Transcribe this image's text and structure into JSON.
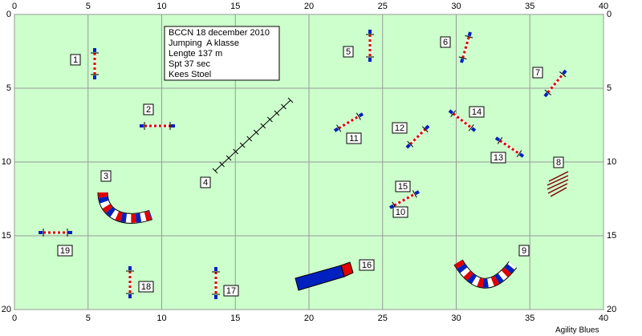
{
  "info_box": {
    "lines": [
      "BCCN 18 december 2010",
      "Jumping  A klasse",
      "Lengte 137 m",
      "Spt 37 sec",
      "Kees Stoel"
    ]
  },
  "axes": {
    "x_ticks": [
      0,
      5,
      10,
      15,
      20,
      25,
      30,
      35,
      40
    ],
    "y_ticks": [
      0,
      5,
      10,
      15,
      20
    ]
  },
  "obstacle_labels": [
    "1",
    "2",
    "3",
    "4",
    "5",
    "6",
    "7",
    "8",
    "9",
    "10",
    "11",
    "12",
    "13",
    "14",
    "15",
    "16",
    "17",
    "18",
    "19"
  ],
  "footer": "Agility Blues"
}
